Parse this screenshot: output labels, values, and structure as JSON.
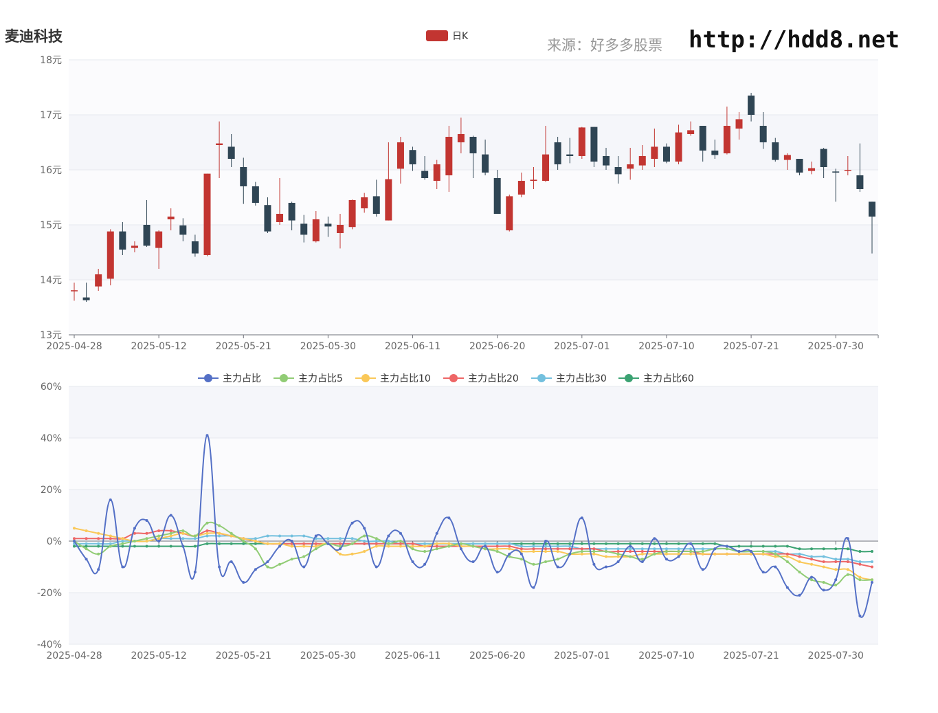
{
  "header": {
    "title": "麦迪科技",
    "source": "来源：好多多股票",
    "url": "http://hdd8.net"
  },
  "colors": {
    "up": "#c23531",
    "down": "#2f4554",
    "series": [
      "#5470c6",
      "#91cc75",
      "#fac858",
      "#ee6666",
      "#73c0de",
      "#3ba272"
    ]
  },
  "chart_data": [
    {
      "type": "candlestick",
      "legend": [
        "日K"
      ],
      "ylim": [
        13,
        18
      ],
      "y_ticks": [
        "13元",
        "14元",
        "15元",
        "16元",
        "17元",
        "18元"
      ],
      "x_ticks": [
        "2025-04-28",
        "2025-05-12",
        "2025-05-21",
        "2025-05-30",
        "2025-06-11",
        "2025-06-20",
        "2025-07-01",
        "2025-07-10",
        "2025-07-21",
        "2025-07-30"
      ],
      "x_tick_index": [
        0,
        7,
        14,
        21,
        28,
        35,
        42,
        49,
        56,
        63
      ],
      "ohlc": [
        [
          13.8,
          13.81,
          13.62,
          13.95
        ],
        [
          13.68,
          13.63,
          13.6,
          13.95
        ],
        [
          13.88,
          14.1,
          13.8,
          14.2
        ],
        [
          14.02,
          14.88,
          13.9,
          14.92
        ],
        [
          14.88,
          14.55,
          14.45,
          15.05
        ],
        [
          14.58,
          14.62,
          14.5,
          14.7
        ],
        [
          15.0,
          14.62,
          14.6,
          15.45
        ],
        [
          14.58,
          14.88,
          14.2,
          14.9
        ],
        [
          15.1,
          15.15,
          14.9,
          15.3
        ],
        [
          14.99,
          14.82,
          14.7,
          15.12
        ],
        [
          14.7,
          14.48,
          14.42,
          14.82
        ],
        [
          14.45,
          15.93,
          14.43,
          15.93
        ],
        [
          16.45,
          16.48,
          15.85,
          16.88
        ],
        [
          16.42,
          16.2,
          16.05,
          16.65
        ],
        [
          16.05,
          15.7,
          15.38,
          16.22
        ],
        [
          15.7,
          15.4,
          15.35,
          15.78
        ],
        [
          15.36,
          14.88,
          14.85,
          15.5
        ],
        [
          15.05,
          15.2,
          15.0,
          15.85
        ],
        [
          15.4,
          15.08,
          14.9,
          15.42
        ],
        [
          15.02,
          14.82,
          14.68,
          15.18
        ],
        [
          14.7,
          15.1,
          14.68,
          15.25
        ],
        [
          15.02,
          14.97,
          14.78,
          15.15
        ],
        [
          14.85,
          15.0,
          14.57,
          15.2
        ],
        [
          14.96,
          15.45,
          14.92,
          15.46
        ],
        [
          15.3,
          15.5,
          15.22,
          15.58
        ],
        [
          15.52,
          15.2,
          15.15,
          15.82
        ],
        [
          15.08,
          15.83,
          15.08,
          16.5
        ],
        [
          16.02,
          16.5,
          15.75,
          16.6
        ],
        [
          16.36,
          16.1,
          15.98,
          16.42
        ],
        [
          15.98,
          15.85,
          15.82,
          16.25
        ],
        [
          15.8,
          16.1,
          15.65,
          16.18
        ],
        [
          15.9,
          16.6,
          15.6,
          16.8
        ],
        [
          16.5,
          16.65,
          16.3,
          16.95
        ],
        [
          16.6,
          16.3,
          15.85,
          16.62
        ],
        [
          16.28,
          15.95,
          15.9,
          16.55
        ],
        [
          15.85,
          15.2,
          15.2,
          16.0
        ],
        [
          14.9,
          15.52,
          14.88,
          15.55
        ],
        [
          15.55,
          15.8,
          15.5,
          15.95
        ],
        [
          15.8,
          15.82,
          15.65,
          16.05
        ],
        [
          15.8,
          16.28,
          15.78,
          16.8
        ],
        [
          16.5,
          16.1,
          16.0,
          16.6
        ],
        [
          16.28,
          16.25,
          16.12,
          16.58
        ],
        [
          16.25,
          16.77,
          16.2,
          16.78
        ],
        [
          16.78,
          16.15,
          16.05,
          16.78
        ],
        [
          16.25,
          16.08,
          16.0,
          16.4
        ],
        [
          16.05,
          15.92,
          15.75,
          16.25
        ],
        [
          16.02,
          16.1,
          15.82,
          16.4
        ],
        [
          16.08,
          16.25,
          16.0,
          16.45
        ],
        [
          16.2,
          16.42,
          16.05,
          16.75
        ],
        [
          16.42,
          16.15,
          16.12,
          16.48
        ],
        [
          16.15,
          16.68,
          16.1,
          16.82
        ],
        [
          16.65,
          16.72,
          16.62,
          16.88
        ],
        [
          16.8,
          16.35,
          16.15,
          16.8
        ],
        [
          16.35,
          16.27,
          16.2,
          16.55
        ],
        [
          16.3,
          16.8,
          16.28,
          17.15
        ],
        [
          16.75,
          16.92,
          16.55,
          17.05
        ],
        [
          17.35,
          17.0,
          16.88,
          17.4
        ],
        [
          16.8,
          16.5,
          16.38,
          17.05
        ],
        [
          16.5,
          16.18,
          16.15,
          16.58
        ],
        [
          16.18,
          16.27,
          16.0,
          16.3
        ],
        [
          16.2,
          15.95,
          15.9,
          16.2
        ],
        [
          15.98,
          16.03,
          15.92,
          16.15
        ],
        [
          16.38,
          16.05,
          15.85,
          16.4
        ],
        [
          15.97,
          15.95,
          15.42,
          16.02
        ],
        [
          16.0,
          16.0,
          15.9,
          16.25
        ],
        [
          15.9,
          15.65,
          15.6,
          16.48
        ],
        [
          15.42,
          15.15,
          14.48,
          15.42
        ]
      ]
    },
    {
      "type": "line",
      "ylim": [
        -40,
        60
      ],
      "y_ticks": [
        "-40%",
        "-20%",
        "0%",
        "20%",
        "40%",
        "60%"
      ],
      "x_ticks": [
        "2025-04-28",
        "2025-05-12",
        "2025-05-21",
        "2025-05-30",
        "2025-06-11",
        "2025-06-20",
        "2025-07-01",
        "2025-07-10",
        "2025-07-21",
        "2025-07-30"
      ],
      "x_tick_index": [
        0,
        7,
        14,
        21,
        28,
        35,
        42,
        49,
        56,
        63
      ],
      "series": [
        {
          "name": "主力占比",
          "values": [
            0,
            -7,
            -11,
            16,
            -10,
            5,
            8,
            0,
            10,
            -2,
            -12,
            41,
            -10,
            -8,
            -16,
            -11,
            -8,
            -2,
            0,
            -10,
            2,
            -1,
            -3,
            7,
            5,
            -10,
            2,
            3,
            -8,
            -9,
            3,
            9,
            -3,
            -8,
            -2,
            -12,
            -5,
            -5,
            -18,
            0,
            -10,
            -5,
            9,
            -9,
            -10,
            -8,
            -2,
            -8,
            1,
            -7,
            -6,
            -1,
            -11,
            -3,
            -2,
            -4,
            -4,
            -12,
            -10,
            -18,
            -21,
            -14,
            -19,
            -15,
            1,
            -29,
            -16
          ]
        },
        {
          "name": "主力占比5",
          "values": [
            0,
            -3,
            -5,
            -2,
            -1,
            0,
            1,
            2,
            3,
            4,
            2,
            7,
            6,
            3,
            0,
            -3,
            -10,
            -9,
            -7,
            -6,
            -3,
            -1,
            -2,
            -1,
            2,
            1,
            -1,
            0,
            -3,
            -4,
            -3,
            -2,
            -1,
            -2,
            -3,
            -4,
            -6,
            -7,
            -9,
            -8,
            -7,
            -5,
            -4,
            -4,
            -4,
            -5,
            -6,
            -7,
            -5,
            -4,
            -4,
            -4,
            -4,
            -3,
            -3,
            -4,
            -4,
            -4,
            -5,
            -8,
            -12,
            -15,
            -16,
            -17,
            -13,
            -15,
            -15
          ]
        },
        {
          "name": "主力占比10",
          "values": [
            5,
            4,
            3,
            2,
            1,
            0,
            0,
            1,
            2,
            3,
            2,
            3,
            3,
            2,
            1,
            0,
            -1,
            -1,
            -2,
            -2,
            -2,
            -1,
            -5,
            -5,
            -4,
            -2,
            -2,
            -2,
            -2,
            -2,
            -1,
            -1,
            -2,
            -2,
            -3,
            -3,
            -3,
            -4,
            -4,
            -4,
            -4,
            -5,
            -5,
            -5,
            -6,
            -6,
            -6,
            -5,
            -5,
            -5,
            -5,
            -5,
            -5,
            -5,
            -5,
            -5,
            -5,
            -5,
            -6,
            -6,
            -8,
            -9,
            -10,
            -11,
            -11,
            -14,
            -15
          ]
        },
        {
          "name": "主力占比20",
          "values": [
            1,
            1,
            1,
            1,
            1,
            3,
            3,
            4,
            4,
            3,
            2,
            4,
            3,
            2,
            1,
            0,
            -1,
            -1,
            -1,
            -1,
            -1,
            -1,
            -1,
            -1,
            -1,
            -1,
            -1,
            -1,
            -1,
            -2,
            -2,
            -2,
            -2,
            -2,
            -2,
            -2,
            -2,
            -3,
            -3,
            -3,
            -3,
            -3,
            -3,
            -3,
            -4,
            -4,
            -4,
            -4,
            -4,
            -4,
            -4,
            -4,
            -5,
            -5,
            -5,
            -5,
            -5,
            -5,
            -5,
            -5,
            -6,
            -7,
            -8,
            -8,
            -8,
            -9,
            -10
          ]
        },
        {
          "name": "主力占比30",
          "values": [
            -1,
            -1,
            -1,
            -1,
            0,
            0,
            0,
            1,
            1,
            1,
            1,
            2,
            2,
            2,
            1,
            1,
            2,
            2,
            2,
            2,
            1,
            1,
            1,
            1,
            0,
            0,
            0,
            -1,
            -1,
            -1,
            -1,
            -1,
            -1,
            -1,
            -1,
            -1,
            -1,
            -2,
            -2,
            -2,
            -2,
            -2,
            -3,
            -3,
            -3,
            -3,
            -3,
            -3,
            -3,
            -3,
            -3,
            -3,
            -3,
            -3,
            -3,
            -4,
            -4,
            -4,
            -4,
            -5,
            -5,
            -6,
            -6,
            -7,
            -7,
            -8,
            -8
          ]
        },
        {
          "name": "主力占比60",
          "values": [
            -2,
            -2,
            -2,
            -2,
            -2,
            -2,
            -2,
            -2,
            -2,
            -2,
            -2,
            -1,
            -1,
            -1,
            -1,
            -1,
            -1,
            -1,
            -1,
            -1,
            -1,
            -1,
            -1,
            -1,
            -1,
            -1,
            -1,
            -1,
            -1,
            -1,
            -1,
            -1,
            -1,
            -1,
            -1,
            -1,
            -1,
            -1,
            -1,
            -1,
            -1,
            -1,
            -1,
            -1,
            -1,
            -1,
            -1,
            -1,
            -1,
            -1,
            -1,
            -1,
            -1,
            -1,
            -2,
            -2,
            -2,
            -2,
            -2,
            -2,
            -3,
            -3,
            -3,
            -3,
            -3,
            -4,
            -4
          ]
        }
      ]
    }
  ]
}
